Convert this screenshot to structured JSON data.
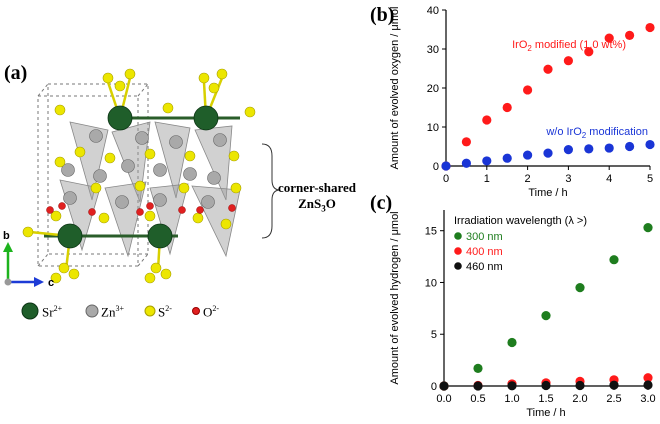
{
  "panels": {
    "a": "(a)",
    "b": "(b)",
    "c": "(c)"
  },
  "structure": {
    "bracket_label_1": "corner-shared",
    "bracket_label_2": "ZnS",
    "bracket_label_2_sub": "3",
    "bracket_label_2_end": "O",
    "axis_b": "b",
    "axis_c": "c",
    "legend": [
      {
        "symbol": "Sr",
        "charge": "2+",
        "color": "#1f5e2a"
      },
      {
        "symbol": "Zn",
        "charge": "3+",
        "color": "#a9a9a9"
      },
      {
        "symbol": "S",
        "charge": "2-",
        "color": "#e6e000"
      },
      {
        "symbol": "O",
        "charge": "2-",
        "color": "#e02020"
      }
    ]
  },
  "chart_data": [
    {
      "id": "b",
      "type": "scatter",
      "xlabel": "Time / h",
      "ylabel": "Amount of evolved oxygen / μmol",
      "xlim": [
        0,
        5
      ],
      "ylim": [
        0,
        40
      ],
      "xticks": [
        0,
        1,
        2,
        3,
        4,
        5
      ],
      "yticks": [
        0,
        10,
        20,
        30,
        40
      ],
      "series": [
        {
          "name": "IrO2 modified (1.0 wt%)",
          "color": "#ff1a1a",
          "x": [
            0,
            0.5,
            1.0,
            1.5,
            2.0,
            2.5,
            3.0,
            3.5,
            4.0,
            4.5,
            5.0
          ],
          "y": [
            0,
            6.2,
            11.8,
            15.0,
            19.5,
            24.8,
            27.0,
            29.3,
            32.8,
            33.5,
            35.5
          ]
        },
        {
          "name": "w/o IrO2 modification",
          "color": "#1a35d6",
          "x": [
            0,
            0.5,
            1.0,
            1.5,
            2.0,
            2.5,
            3.0,
            3.5,
            4.0,
            4.5,
            5.0
          ],
          "y": [
            0,
            0.7,
            1.3,
            2.0,
            2.8,
            3.3,
            4.2,
            4.4,
            4.6,
            5.0,
            5.5
          ]
        }
      ]
    },
    {
      "id": "c",
      "type": "scatter",
      "xlabel": "Time / h",
      "ylabel": "Amount of evolved hydrogen / μmol",
      "legend_title": "Irradiation wavelength (λ >)",
      "xlim": [
        0,
        3.0
      ],
      "ylim": [
        0,
        17
      ],
      "xticks": [
        "0.0",
        "0.5",
        "1.0",
        "1.5",
        "2.0",
        "2.5",
        "3.0"
      ],
      "yticks": [
        0,
        5,
        10,
        15
      ],
      "series": [
        {
          "name": "300 nm",
          "color": "#1e7d1e",
          "x": [
            0,
            0.5,
            1.0,
            1.5,
            2.0,
            2.5,
            3.0
          ],
          "y": [
            0,
            1.7,
            4.2,
            6.8,
            9.5,
            12.2,
            15.3
          ]
        },
        {
          "name": "400 nm",
          "color": "#ff1a1a",
          "x": [
            0,
            0.5,
            1.0,
            1.5,
            2.0,
            2.5,
            3.0
          ],
          "y": [
            0,
            0.05,
            0.2,
            0.3,
            0.45,
            0.6,
            0.8
          ]
        },
        {
          "name": "460 nm",
          "color": "#111111",
          "x": [
            0,
            0.5,
            1.0,
            1.5,
            2.0,
            2.5,
            3.0
          ],
          "y": [
            0,
            0.0,
            0.02,
            0.05,
            0.05,
            0.08,
            0.1
          ]
        }
      ]
    }
  ]
}
